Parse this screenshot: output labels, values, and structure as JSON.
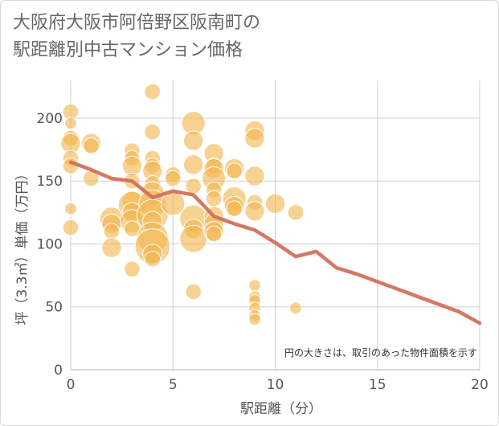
{
  "title_lines": [
    "大阪府大阪市阿倍野区阪南町の",
    "駅距離別中古マンション価格"
  ],
  "chart_data": {
    "type": "scatter",
    "title": "大阪府大阪市阿倍野区阪南町の駅距離別中古マンション価格",
    "xlabel": "駅距離（分）",
    "ylabel": "坪（3.3㎡）単価（万円）",
    "xlim": [
      0,
      20
    ],
    "ylim": [
      0,
      230
    ],
    "xticks": [
      0,
      5,
      10,
      15,
      20
    ],
    "yticks": [
      0,
      50,
      100,
      150,
      200
    ],
    "grid": true,
    "annotation": "円の大きさは、取引のあった物件面積を示す",
    "colors": {
      "bubble": "#f2b650",
      "trend": "#d4705a",
      "grid": "#c8d0dc"
    },
    "bubbles": [
      {
        "x": 0,
        "y": 205,
        "s": 2
      },
      {
        "x": 0,
        "y": 196,
        "s": 1
      },
      {
        "x": 0,
        "y": 184,
        "s": 2
      },
      {
        "x": 0,
        "y": 180,
        "s": 3
      },
      {
        "x": 0,
        "y": 168,
        "s": 2
      },
      {
        "x": 0,
        "y": 162,
        "s": 2
      },
      {
        "x": 0,
        "y": 128,
        "s": 1
      },
      {
        "x": 0,
        "y": 113,
        "s": 2
      },
      {
        "x": 1,
        "y": 180,
        "s": 3
      },
      {
        "x": 1,
        "y": 178,
        "s": 2
      },
      {
        "x": 1,
        "y": 152,
        "s": 2
      },
      {
        "x": 2,
        "y": 120,
        "s": 4
      },
      {
        "x": 2,
        "y": 116,
        "s": 3
      },
      {
        "x": 2,
        "y": 110,
        "s": 2
      },
      {
        "x": 2,
        "y": 97,
        "s": 3
      },
      {
        "x": 3,
        "y": 174,
        "s": 2
      },
      {
        "x": 3,
        "y": 168,
        "s": 2
      },
      {
        "x": 3,
        "y": 162,
        "s": 3
      },
      {
        "x": 3,
        "y": 150,
        "s": 2
      },
      {
        "x": 3,
        "y": 134,
        "s": 3
      },
      {
        "x": 3,
        "y": 131,
        "s": 5
      },
      {
        "x": 3,
        "y": 125,
        "s": 3
      },
      {
        "x": 3,
        "y": 118,
        "s": 4
      },
      {
        "x": 3,
        "y": 112,
        "s": 2
      },
      {
        "x": 3,
        "y": 80,
        "s": 2
      },
      {
        "x": 4,
        "y": 221,
        "s": 2
      },
      {
        "x": 4,
        "y": 189,
        "s": 2
      },
      {
        "x": 4,
        "y": 168,
        "s": 2
      },
      {
        "x": 4,
        "y": 162,
        "s": 2
      },
      {
        "x": 4,
        "y": 158,
        "s": 3
      },
      {
        "x": 4,
        "y": 148,
        "s": 2
      },
      {
        "x": 4,
        "y": 140,
        "s": 4
      },
      {
        "x": 4,
        "y": 132,
        "s": 5
      },
      {
        "x": 4,
        "y": 123,
        "s": 6
      },
      {
        "x": 4,
        "y": 118,
        "s": 3
      },
      {
        "x": 4,
        "y": 105,
        "s": 6
      },
      {
        "x": 4,
        "y": 98,
        "s": 7
      },
      {
        "x": 4,
        "y": 92,
        "s": 3
      },
      {
        "x": 4,
        "y": 88,
        "s": 2
      },
      {
        "x": 5,
        "y": 155,
        "s": 2
      },
      {
        "x": 5,
        "y": 152,
        "s": 2
      },
      {
        "x": 5,
        "y": 132,
        "s": 4
      },
      {
        "x": 6,
        "y": 196,
        "s": 4
      },
      {
        "x": 6,
        "y": 182,
        "s": 3
      },
      {
        "x": 6,
        "y": 163,
        "s": 3
      },
      {
        "x": 6,
        "y": 146,
        "s": 2
      },
      {
        "x": 6,
        "y": 120,
        "s": 5
      },
      {
        "x": 6,
        "y": 112,
        "s": 3
      },
      {
        "x": 6,
        "y": 104,
        "s": 5
      },
      {
        "x": 6,
        "y": 62,
        "s": 2
      },
      {
        "x": 7,
        "y": 172,
        "s": 3
      },
      {
        "x": 7,
        "y": 162,
        "s": 2
      },
      {
        "x": 7,
        "y": 160,
        "s": 3
      },
      {
        "x": 7,
        "y": 152,
        "s": 4
      },
      {
        "x": 7,
        "y": 143,
        "s": 2
      },
      {
        "x": 7,
        "y": 136,
        "s": 2
      },
      {
        "x": 7,
        "y": 122,
        "s": 3
      },
      {
        "x": 7,
        "y": 116,
        "s": 3
      },
      {
        "x": 7,
        "y": 110,
        "s": 3
      },
      {
        "x": 7,
        "y": 108,
        "s": 2
      },
      {
        "x": 8,
        "y": 160,
        "s": 3
      },
      {
        "x": 8,
        "y": 158,
        "s": 2
      },
      {
        "x": 8,
        "y": 136,
        "s": 4
      },
      {
        "x": 8,
        "y": 130,
        "s": 3
      },
      {
        "x": 8,
        "y": 128,
        "s": 2
      },
      {
        "x": 9,
        "y": 190,
        "s": 3
      },
      {
        "x": 9,
        "y": 184,
        "s": 3
      },
      {
        "x": 9,
        "y": 154,
        "s": 3
      },
      {
        "x": 9,
        "y": 133,
        "s": 2
      },
      {
        "x": 9,
        "y": 126,
        "s": 3
      },
      {
        "x": 9,
        "y": 67,
        "s": 1
      },
      {
        "x": 9,
        "y": 58,
        "s": 1
      },
      {
        "x": 9,
        "y": 55,
        "s": 1
      },
      {
        "x": 9,
        "y": 49,
        "s": 1
      },
      {
        "x": 9,
        "y": 43,
        "s": 1
      },
      {
        "x": 9,
        "y": 40,
        "s": 1
      },
      {
        "x": 10,
        "y": 132,
        "s": 3
      },
      {
        "x": 11,
        "y": 125,
        "s": 2
      },
      {
        "x": 11,
        "y": 49,
        "s": 1
      }
    ],
    "trend": {
      "x": [
        0,
        1,
        2,
        3,
        4,
        5,
        6,
        7,
        8,
        9,
        10,
        11,
        12,
        13,
        14,
        15,
        16,
        17,
        18,
        19,
        20
      ],
      "y": [
        165,
        159,
        152,
        150,
        137,
        142,
        139,
        122,
        116,
        111,
        101,
        90,
        94,
        81,
        76,
        70,
        64,
        58,
        52,
        46,
        37
      ]
    }
  }
}
